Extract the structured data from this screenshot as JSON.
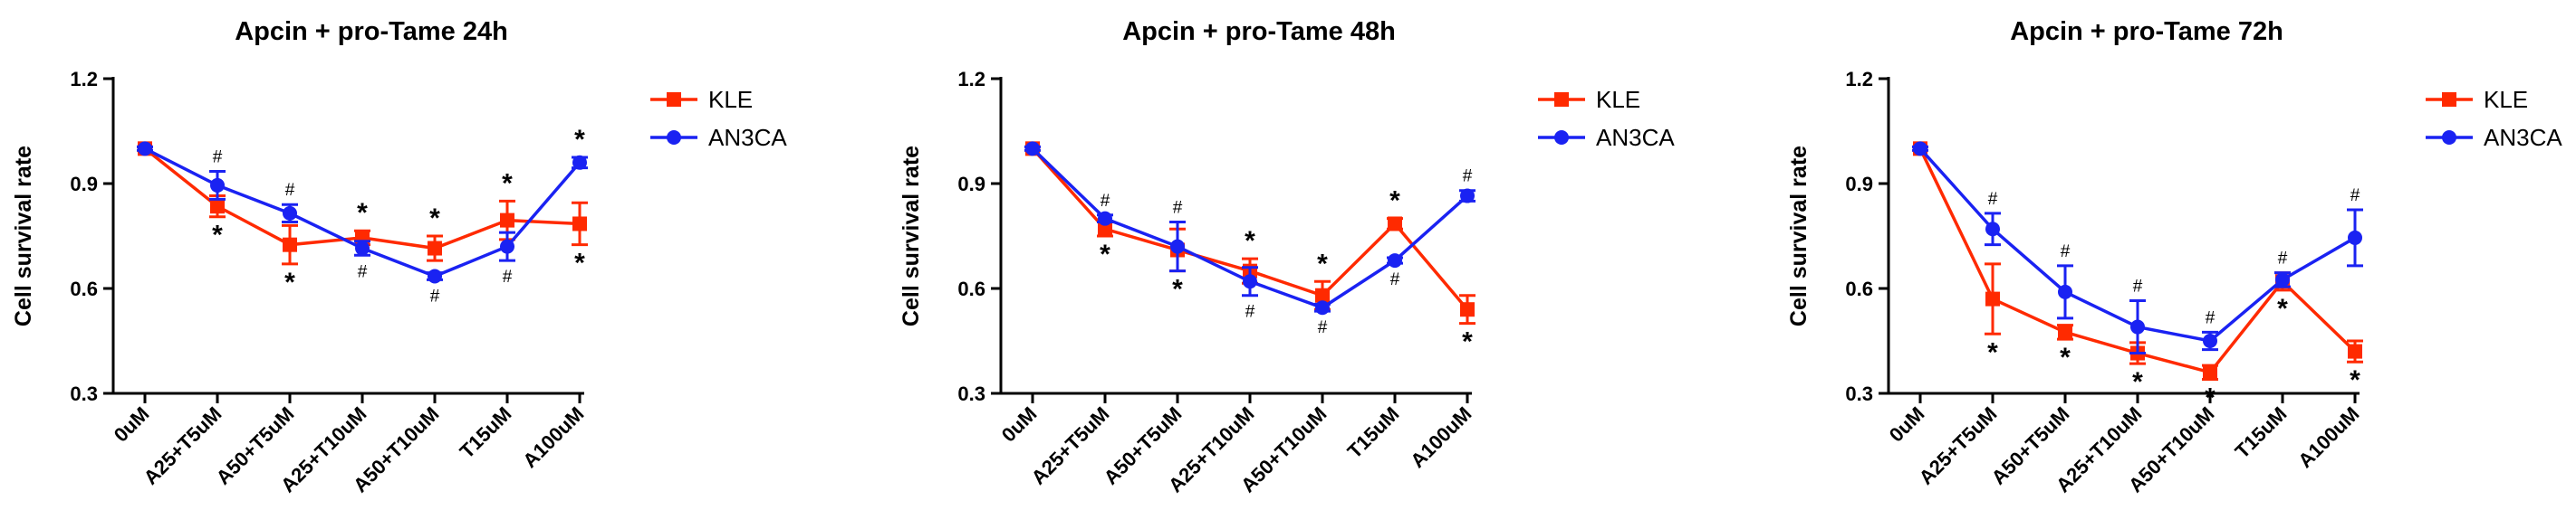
{
  "chart_data": [
    {
      "type": "line",
      "title": "Apcin + pro-Tame 24h",
      "xlabel": "",
      "ylabel": "Cell survival rate",
      "ylim": [
        0.3,
        1.2
      ],
      "yticks": [
        "0.3",
        "0.6",
        "0.9",
        "1.2"
      ],
      "categories": [
        "0uM",
        "A25+T5uM",
        "A50+T5uM",
        "A25+T10uM",
        "A50+T10uM",
        "T15uM",
        "A100uM"
      ],
      "legend_position": "top-right",
      "series": [
        {
          "name": "KLE",
          "color": "#ff2a00",
          "marker": "square",
          "values": [
            1.0,
            0.835,
            0.725,
            0.745,
            0.715,
            0.795,
            0.785
          ],
          "errors": [
            0.005,
            0.03,
            0.055,
            0.02,
            0.035,
            0.055,
            0.06
          ],
          "marks": [
            "",
            "*",
            "*",
            "*",
            "*",
            "*",
            "*"
          ]
        },
        {
          "name": "AN3CA",
          "color": "#1a22f2",
          "marker": "circle",
          "values": [
            1.0,
            0.895,
            0.815,
            0.715,
            0.635,
            0.72,
            0.96
          ],
          "errors": [
            0.005,
            0.04,
            0.025,
            0.02,
            0.01,
            0.04,
            0.015
          ],
          "marks": [
            "",
            "#",
            "#",
            "#",
            "#",
            "#",
            "*"
          ]
        }
      ]
    },
    {
      "type": "line",
      "title": "Apcin + pro-Tame 48h",
      "xlabel": "",
      "ylabel": "Cell survival rate",
      "ylim": [
        0.3,
        1.2
      ],
      "yticks": [
        "0.3",
        "0.6",
        "0.9",
        "1.2"
      ],
      "categories": [
        "0uM",
        "A25+T5uM",
        "A50+T5uM",
        "A25+T10uM",
        "A50+T10uM",
        "T15uM",
        "A100uM"
      ],
      "legend_position": "top-right",
      "series": [
        {
          "name": "KLE",
          "color": "#ff2a00",
          "marker": "square",
          "values": [
            1.0,
            0.77,
            0.71,
            0.65,
            0.58,
            0.785,
            0.54
          ],
          "errors": [
            0.005,
            0.02,
            0.06,
            0.035,
            0.04,
            0.015,
            0.04
          ],
          "marks": [
            "",
            "*",
            "*",
            "*",
            "*",
            "*",
            "*"
          ]
        },
        {
          "name": "AN3CA",
          "color": "#1a22f2",
          "marker": "circle",
          "values": [
            1.0,
            0.8,
            0.72,
            0.62,
            0.545,
            0.68,
            0.865
          ],
          "errors": [
            0.005,
            0.01,
            0.07,
            0.04,
            0.01,
            0.008,
            0.015
          ],
          "marks": [
            "",
            "#",
            "#",
            "#",
            "#",
            "#",
            "#"
          ]
        }
      ]
    },
    {
      "type": "line",
      "title": "Apcin + pro-Tame 72h",
      "xlabel": "",
      "ylabel": "Cell survival rate",
      "ylim": [
        0.3,
        1.2
      ],
      "yticks": [
        "0.3",
        "0.6",
        "0.9",
        "1.2"
      ],
      "categories": [
        "0uM",
        "A25+T5uM",
        "A50+T5uM",
        "A25+T10uM",
        "A50+T10uM",
        "T15uM",
        "A100uM"
      ],
      "legend_position": "top-right",
      "series": [
        {
          "name": "KLE",
          "color": "#ff2a00",
          "marker": "square",
          "values": [
            1.0,
            0.57,
            0.475,
            0.415,
            0.36,
            0.62,
            0.42
          ],
          "errors": [
            0.005,
            0.1,
            0.02,
            0.03,
            0.02,
            0.025,
            0.03
          ],
          "marks": [
            "",
            "*",
            "*",
            "*",
            "*",
            "*",
            "*"
          ]
        },
        {
          "name": "AN3CA",
          "color": "#1a22f2",
          "marker": "circle",
          "values": [
            1.0,
            0.77,
            0.59,
            0.49,
            0.45,
            0.625,
            0.745
          ],
          "errors": [
            0.005,
            0.045,
            0.075,
            0.075,
            0.025,
            0.02,
            0.08
          ],
          "marks": [
            "",
            "#",
            "#",
            "#",
            "#",
            "#",
            "#"
          ]
        }
      ]
    }
  ]
}
